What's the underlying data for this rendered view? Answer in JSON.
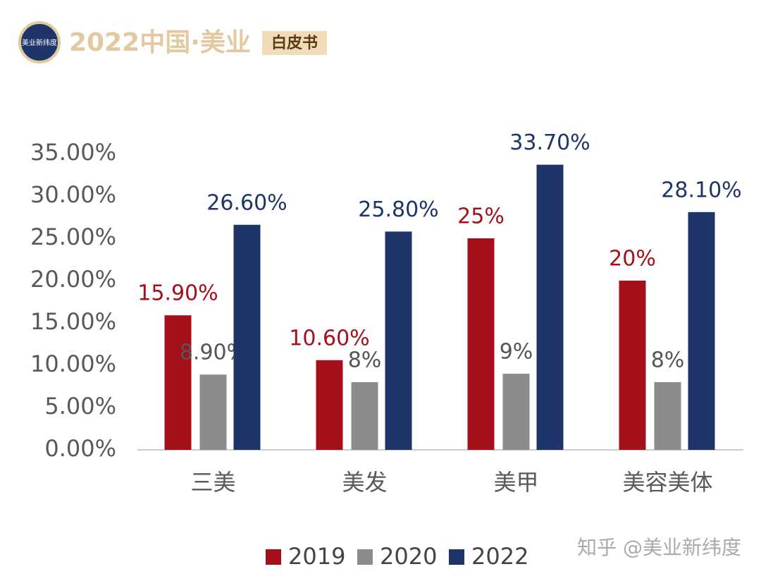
{
  "header": {
    "logo_text": "美业新纬度",
    "title": "2022中国·美业",
    "badge": "白皮书"
  },
  "watermark": "知乎 @美业新纬度",
  "chart_data": {
    "type": "bar",
    "categories": [
      "三美",
      "美发",
      "美甲",
      "美容美体"
    ],
    "series": [
      {
        "name": "2019",
        "color": "#a50f1a",
        "label_color": "#a50f1a",
        "values": [
          15.9,
          10.6,
          25,
          20
        ],
        "value_labels": [
          "15.90%",
          "10.60%",
          "25%",
          "20%"
        ]
      },
      {
        "name": "2020",
        "color": "#8c8c8c",
        "label_color": "#555555",
        "values": [
          8.9,
          8,
          9,
          8
        ],
        "value_labels": [
          "8.90%",
          "8%",
          "9%",
          "8%"
        ]
      },
      {
        "name": "2022",
        "color": "#1f3468",
        "label_color": "#1f3468",
        "values": [
          26.6,
          25.8,
          33.7,
          28.1
        ],
        "value_labels": [
          "26.60%",
          "25.80%",
          "33.70%",
          "28.10%"
        ]
      }
    ],
    "ylim": [
      0,
      35
    ],
    "yticks": [
      {
        "value": 0,
        "label": "0.00%"
      },
      {
        "value": 5,
        "label": "5.00%"
      },
      {
        "value": 10,
        "label": "10.00%"
      },
      {
        "value": 15,
        "label": "15.00%"
      },
      {
        "value": 20,
        "label": "20.00%"
      },
      {
        "value": 25,
        "label": "25.00%"
      },
      {
        "value": 30,
        "label": "30.00%"
      },
      {
        "value": 35,
        "label": "35.00%"
      }
    ],
    "grid": false,
    "legend": "bottom"
  }
}
